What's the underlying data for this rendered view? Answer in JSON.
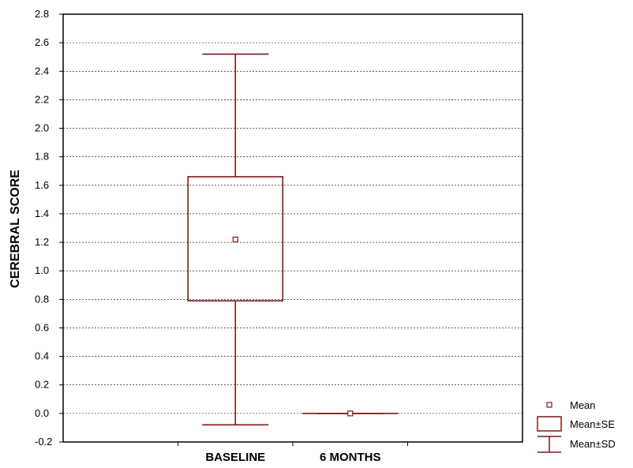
{
  "chart_data": {
    "type": "box",
    "ylabel": "CEREBRAL SCORE",
    "xlabel": "",
    "ylim": [
      -0.2,
      2.8
    ],
    "yticks": [
      -0.2,
      0.0,
      0.2,
      0.4,
      0.6,
      0.8,
      1.0,
      1.2,
      1.4,
      1.6,
      1.8,
      2.0,
      2.2,
      2.4,
      2.6,
      2.8
    ],
    "ytick_labels": [
      "-0.2",
      "0.0",
      "0.2",
      "0.4",
      "0.6",
      "0.8",
      "1.0",
      "1.2",
      "1.4",
      "1.6",
      "1.8",
      "2.0",
      "2.2",
      "2.4",
      "2.6",
      "2.8"
    ],
    "grid": true,
    "categories": [
      "BASELINE",
      "6 MONTHS"
    ],
    "series": [
      {
        "category": "BASELINE",
        "mean": 1.22,
        "se_low": 0.79,
        "se_high": 1.66,
        "sd_low": -0.08,
        "sd_high": 2.52
      },
      {
        "category": "6 MONTHS",
        "mean": 0.0,
        "se_low": 0.0,
        "se_high": 0.0,
        "sd_low": 0.0,
        "sd_high": 0.0
      }
    ],
    "legend": {
      "position": "bottom-right",
      "entries": [
        "Mean",
        "Mean±SE",
        "Mean±SD"
      ]
    },
    "colors": {
      "series": "#7b1a1a",
      "axis": "#000000",
      "grid": "#000000"
    }
  }
}
